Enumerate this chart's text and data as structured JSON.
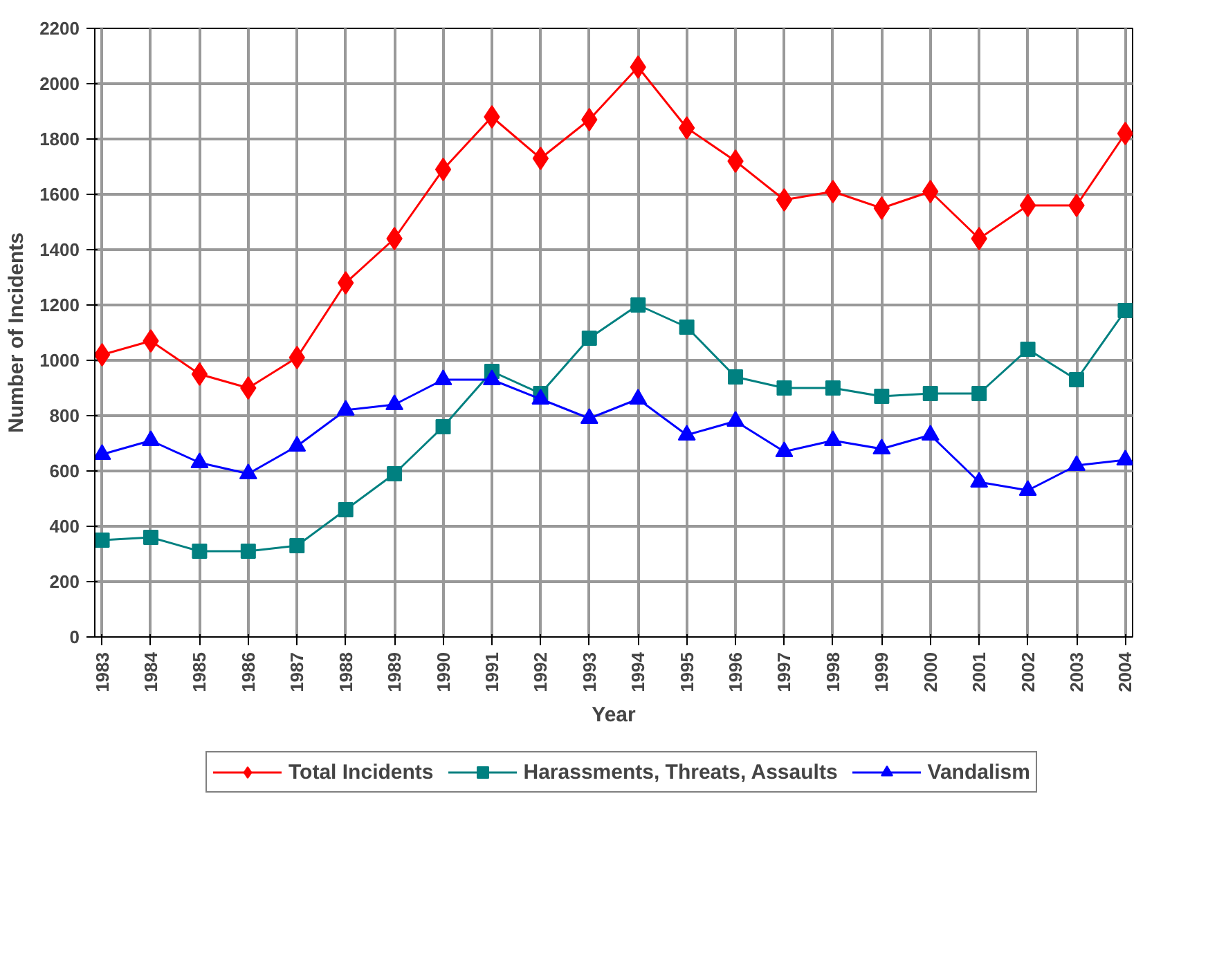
{
  "chart_data": {
    "type": "line",
    "xlabel": "Year",
    "ylabel": "Number of Incidents",
    "categories": [
      "1983",
      "1984",
      "1985",
      "1986",
      "1987",
      "1988",
      "1989",
      "1990",
      "1991",
      "1992",
      "1993",
      "1994",
      "1995",
      "1996",
      "1997",
      "1998",
      "1999",
      "2000",
      "2001",
      "2002",
      "2003",
      "2004"
    ],
    "series": [
      {
        "name": "Total Incidents",
        "color": "#ff0000",
        "marker": "diamond",
        "values": [
          1020,
          1070,
          950,
          900,
          1010,
          1280,
          1440,
          1690,
          1880,
          1730,
          1870,
          2060,
          1840,
          1720,
          1580,
          1610,
          1550,
          1610,
          1440,
          1560,
          1560,
          1820
        ]
      },
      {
        "name": "Harassments, Threats, Assaults",
        "color": "#008080",
        "marker": "square",
        "values": [
          350,
          360,
          310,
          310,
          330,
          460,
          590,
          760,
          960,
          880,
          1080,
          1200,
          1120,
          940,
          900,
          900,
          870,
          880,
          880,
          1040,
          930,
          1180
        ]
      },
      {
        "name": "Vandalism",
        "color": "#0000ff",
        "marker": "triangle",
        "values": [
          660,
          710,
          630,
          590,
          690,
          820,
          840,
          930,
          930,
          860,
          790,
          860,
          730,
          780,
          670,
          710,
          680,
          730,
          560,
          530,
          620,
          640
        ]
      }
    ],
    "ylim": [
      0,
      2200
    ],
    "yticks": [
      0,
      200,
      400,
      600,
      800,
      1000,
      1200,
      1400,
      1600,
      1800,
      2000,
      2200
    ],
    "grid": true,
    "legend": "bottom",
    "line_style": "solid"
  }
}
